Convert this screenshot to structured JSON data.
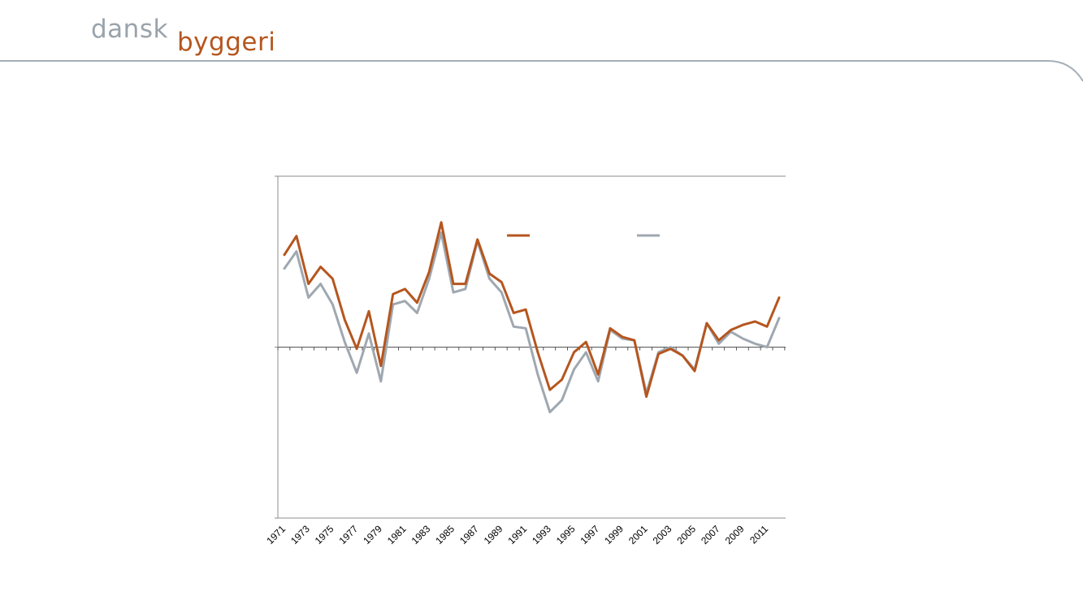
{
  "brand": {
    "part1": "dansk",
    "part2": "byggeri"
  },
  "colors": {
    "brand_gray": "#9aa3ab",
    "brand_orange": "#b5561f",
    "series_a": "#b5561f",
    "series_b": "#9fa8b0",
    "axis": "#8c8c8c"
  },
  "chart_data": {
    "type": "line",
    "title": "",
    "xlabel": "",
    "ylabel": "",
    "x": [
      1971,
      1972,
      1973,
      1974,
      1975,
      1976,
      1977,
      1978,
      1979,
      1980,
      1981,
      1982,
      1983,
      1984,
      1985,
      1986,
      1987,
      1988,
      1989,
      1990,
      1991,
      1992,
      1993,
      1994,
      1995,
      1996,
      1997,
      1998,
      1999,
      2000,
      2001,
      2002,
      2003,
      2004,
      2005,
      2006,
      2007,
      2008,
      2009,
      2010,
      2011,
      2012
    ],
    "x_tick_labels": [
      "1971",
      "1973",
      "1975",
      "1977",
      "1979",
      "1981",
      "1983",
      "1985",
      "1987",
      "1989",
      "1991",
      "1993",
      "1995",
      "1997",
      "1999",
      "2001",
      "2003",
      "2005",
      "2007",
      "2009",
      "2011"
    ],
    "y_tick_labels": [],
    "ylim": [
      -1,
      1
    ],
    "grid": false,
    "legend": {
      "position": "top-right",
      "entries": [
        "",
        ""
      ]
    },
    "series": [
      {
        "name": "",
        "color": "#b5561f",
        "values": [
          0.54,
          0.65,
          0.37,
          0.47,
          0.4,
          0.16,
          -0.01,
          0.21,
          -0.11,
          0.31,
          0.34,
          0.26,
          0.44,
          0.73,
          0.37,
          0.37,
          0.63,
          0.43,
          0.38,
          0.2,
          0.22,
          -0.03,
          -0.25,
          -0.19,
          -0.03,
          0.03,
          -0.16,
          0.11,
          0.06,
          0.04,
          -0.29,
          -0.04,
          -0.01,
          -0.05,
          -0.14,
          0.14,
          0.04,
          0.1,
          0.13,
          0.15,
          0.12,
          0.29
        ]
      },
      {
        "name": "",
        "color": "#9fa8b0",
        "values": [
          0.46,
          0.56,
          0.29,
          0.37,
          0.25,
          0.03,
          -0.15,
          0.08,
          -0.2,
          0.25,
          0.27,
          0.2,
          0.4,
          0.67,
          0.32,
          0.34,
          0.62,
          0.4,
          0.32,
          0.12,
          0.11,
          -0.16,
          -0.38,
          -0.31,
          -0.13,
          -0.03,
          -0.2,
          0.1,
          0.05,
          0.04,
          -0.27,
          -0.03,
          0.0,
          -0.05,
          -0.13,
          0.14,
          0.02,
          0.09,
          0.05,
          0.02,
          0.0,
          0.17
        ]
      }
    ]
  }
}
